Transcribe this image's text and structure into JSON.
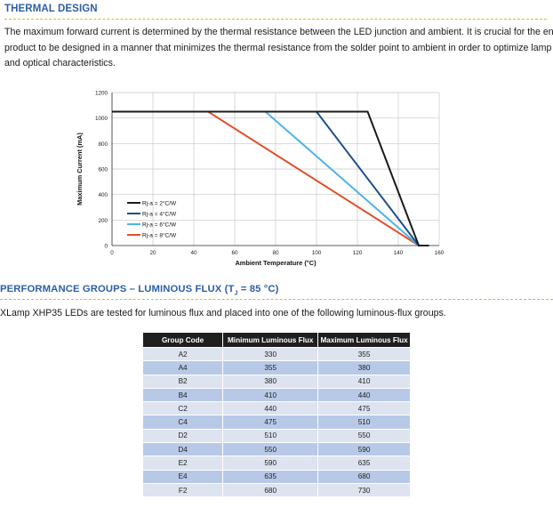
{
  "thermal": {
    "title": "THERMAL DESIGN",
    "paragraph_lines": [
      "The maximum forward current is determined by the thermal resistance between the LED junction and ambient. It is crucial for the end",
      "product to be designed in a manner that minimizes the thermal resistance from the solder point to ambient in order to optimize lamp life",
      "and optical characteristics."
    ]
  },
  "chart_data": {
    "type": "line",
    "xlabel": "Ambient Temperature (°C)",
    "ylabel": "Maximum Current (mA)",
    "xlim": [
      0,
      160
    ],
    "ylim": [
      0,
      1200
    ],
    "x_ticks": [
      0,
      20,
      40,
      60,
      80,
      100,
      120,
      140,
      160
    ],
    "y_ticks": [
      0,
      200,
      400,
      600,
      800,
      1000,
      1200
    ],
    "grid": true,
    "legend_position": "bottom-left",
    "series": [
      {
        "name": "Rj-a = 2°C/W",
        "color": "#1a1a1a",
        "x": [
          0,
          125,
          150,
          155
        ],
        "y": [
          1050,
          1050,
          0,
          0
        ]
      },
      {
        "name": "Rj-a = 4°C/W",
        "color": "#1f4e8c",
        "x": [
          0,
          100,
          150,
          155
        ],
        "y": [
          1050,
          1050,
          0,
          0
        ]
      },
      {
        "name": "Rj-a = 6°C/W",
        "color": "#4cb3e6",
        "x": [
          0,
          75,
          150,
          155
        ],
        "y": [
          1050,
          1050,
          0,
          0
        ]
      },
      {
        "name": "Rj-a = 8°C/W",
        "color": "#e0502a",
        "x": [
          0,
          47,
          150,
          155
        ],
        "y": [
          1050,
          1050,
          0,
          0
        ]
      }
    ]
  },
  "perf": {
    "title": "PERFORMANCE GROUPS – LUMINOUS FLUX (T",
    "title_sub": "J",
    "title_end": " = 85 °C)",
    "paragraph": "XLamp XHP35 LEDs are tested for luminous flux and placed into one of the following luminous-flux groups."
  },
  "table": {
    "headers": [
      "Group Code",
      "Minimum Luminous Flux",
      "Maximum Luminous Flux"
    ],
    "rows": [
      [
        "A2",
        "330",
        "355"
      ],
      [
        "A4",
        "355",
        "380"
      ],
      [
        "B2",
        "380",
        "410"
      ],
      [
        "B4",
        "410",
        "440"
      ],
      [
        "C2",
        "440",
        "475"
      ],
      [
        "C4",
        "475",
        "510"
      ],
      [
        "D2",
        "510",
        "550"
      ],
      [
        "D4",
        "550",
        "590"
      ],
      [
        "E2",
        "590",
        "635"
      ],
      [
        "E4",
        "635",
        "680"
      ],
      [
        "F2",
        "680",
        "730"
      ]
    ]
  }
}
